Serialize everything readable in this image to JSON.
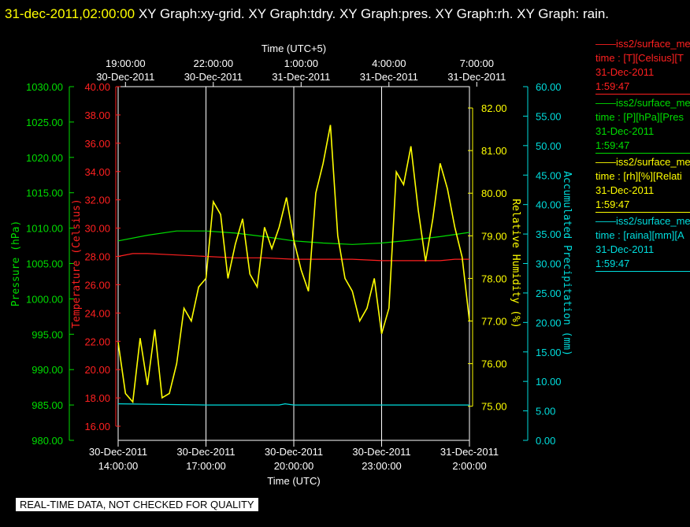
{
  "title": {
    "timestamp": "31-dec-2011,02:00:00",
    "graphs": "XY Graph:xy-grid.  XY Graph:tdry.  XY Graph:pres.  XY Graph:rh.  XY Graph: rain."
  },
  "notice": "REAL-TIME DATA, NOT CHECKED FOR QUALITY",
  "legend": [
    {
      "line1": "——iss2/surface_me",
      "line2": "time : [T][Celsius][T",
      "line3": "31-Dec-2011",
      "line4": "1:59:47",
      "color": "#ff2020"
    },
    {
      "line1": "——iss2/surface_me",
      "line2": "time : [P][hPa][Pres",
      "line3": "31-Dec-2011",
      "line4": "1:59:47",
      "color": "#00dd00"
    },
    {
      "line1": "——iss2/surface_me",
      "line2": "time : [rh][%][Relati",
      "line3": "31-Dec-2011",
      "line4": "1:59:47",
      "color": "#ffff00"
    },
    {
      "line1": "——iss2/surface_me",
      "line2": "time : [raina][mm][A",
      "line3": "31-Dec-2011",
      "line4": "1:59:47",
      "color": "#00dddd"
    }
  ],
  "chart_data": {
    "type": "line",
    "x_top": {
      "title": "Time (UTC+5)",
      "ticks": [
        {
          "time": "19:00:00",
          "date": "30-Dec-2011"
        },
        {
          "time": "22:00:00",
          "date": "30-Dec-2011"
        },
        {
          "time": "1:00:00",
          "date": "31-Dec-2011"
        },
        {
          "time": "4:00:00",
          "date": "31-Dec-2011"
        },
        {
          "time": "7:00:00",
          "date": "31-Dec-2011"
        }
      ]
    },
    "x_bottom": {
      "title": "Time (UTC)",
      "range_hours": [
        0,
        12
      ],
      "ticks": [
        {
          "date": "30-Dec-2011",
          "time": "14:00:00"
        },
        {
          "date": "30-Dec-2011",
          "time": "17:00:00"
        },
        {
          "date": "30-Dec-2011",
          "time": "20:00:00"
        },
        {
          "date": "30-Dec-2011",
          "time": "23:00:00"
        },
        {
          "date": "31-Dec-2011",
          "time": "2:00:00"
        }
      ]
    },
    "axes": {
      "pressure": {
        "label": "Pressure (hPa)",
        "color": "#00dd00",
        "min": 980,
        "max": 1030,
        "ticks": [
          "980.00",
          "985.00",
          "990.00",
          "995.00",
          "1000.00",
          "1005.00",
          "1010.00",
          "1015.00",
          "1020.00",
          "1025.00",
          "1030.00"
        ]
      },
      "temperature": {
        "label": "Temperature (Celsius)",
        "color": "#ff2020",
        "min": 15,
        "max": 40,
        "ticks": [
          "16.00",
          "18.00",
          "20.00",
          "22.00",
          "24.00",
          "26.00",
          "28.00",
          "30.00",
          "32.00",
          "34.00",
          "36.00",
          "38.00",
          "40.00"
        ]
      },
      "humidity": {
        "label": "Relative Humidity (%)",
        "color": "#ffff00",
        "min": 74.2,
        "max": 82.5,
        "ticks": [
          "75.00",
          "76.00",
          "77.00",
          "78.00",
          "79.00",
          "80.00",
          "81.00",
          "82.00"
        ]
      },
      "precip": {
        "label": "Accumulated Precipitation (mm)",
        "color": "#00dddd",
        "min": 0,
        "max": 60,
        "ticks": [
          "0.00",
          "5.00",
          "10.00",
          "15.00",
          "20.00",
          "25.00",
          "30.00",
          "35.00",
          "40.00",
          "45.00",
          "50.00",
          "55.00",
          "60.00"
        ]
      }
    },
    "series": [
      {
        "name": "Temperature",
        "axis": "temperature",
        "color": "#ff2020",
        "x": [
          0,
          0.5,
          1,
          2,
          3,
          4,
          5,
          6,
          7,
          8,
          9,
          10,
          11,
          11.5,
          12
        ],
        "y": [
          28.0,
          28.2,
          28.2,
          28.1,
          28.0,
          27.9,
          27.9,
          27.8,
          27.8,
          27.8,
          27.7,
          27.7,
          27.7,
          27.8,
          27.8
        ]
      },
      {
        "name": "Pressure",
        "axis": "pressure",
        "color": "#00dd00",
        "x": [
          0,
          1,
          2,
          3,
          4,
          5,
          6,
          7,
          8,
          9,
          10,
          11,
          12
        ],
        "y": [
          1008.2,
          1009.0,
          1009.6,
          1009.6,
          1009.3,
          1008.8,
          1008.2,
          1007.9,
          1007.7,
          1007.9,
          1008.3,
          1008.8,
          1009.4
        ]
      },
      {
        "name": "Relative Humidity",
        "axis": "humidity",
        "color": "#ffff00",
        "x": [
          0,
          0.25,
          0.5,
          0.75,
          1,
          1.25,
          1.5,
          1.75,
          2,
          2.25,
          2.5,
          2.75,
          3,
          3.25,
          3.5,
          3.75,
          4,
          4.25,
          4.5,
          4.75,
          5,
          5.25,
          5.5,
          5.75,
          6,
          6.25,
          6.5,
          6.75,
          7,
          7.25,
          7.5,
          7.75,
          8,
          8.25,
          8.5,
          8.75,
          9,
          9.25,
          9.5,
          9.75,
          10,
          10.25,
          10.5,
          10.75,
          11,
          11.25,
          11.5,
          11.75,
          12
        ],
        "y": [
          76.5,
          75.3,
          75.1,
          76.6,
          75.5,
          76.8,
          75.2,
          75.3,
          76.0,
          77.3,
          77.0,
          77.8,
          78.0,
          79.8,
          79.5,
          78.0,
          78.8,
          79.4,
          78.1,
          77.8,
          79.2,
          78.7,
          79.2,
          79.9,
          78.9,
          78.2,
          77.7,
          80.0,
          80.7,
          81.6,
          79.0,
          78.0,
          77.7,
          77.0,
          77.3,
          78.0,
          76.7,
          77.3,
          80.5,
          80.2,
          81.1,
          79.6,
          78.4,
          79.4,
          80.7,
          80.1,
          79.2,
          78.5,
          77.0
        ]
      },
      {
        "name": "Accumulated Precipitation",
        "axis": "precip",
        "color": "#00dddd",
        "x": [
          0,
          3,
          5.5,
          5.7,
          6,
          9,
          12
        ],
        "y": [
          6.2,
          6.0,
          6.0,
          6.2,
          6.0,
          6.0,
          6.0
        ]
      }
    ]
  }
}
